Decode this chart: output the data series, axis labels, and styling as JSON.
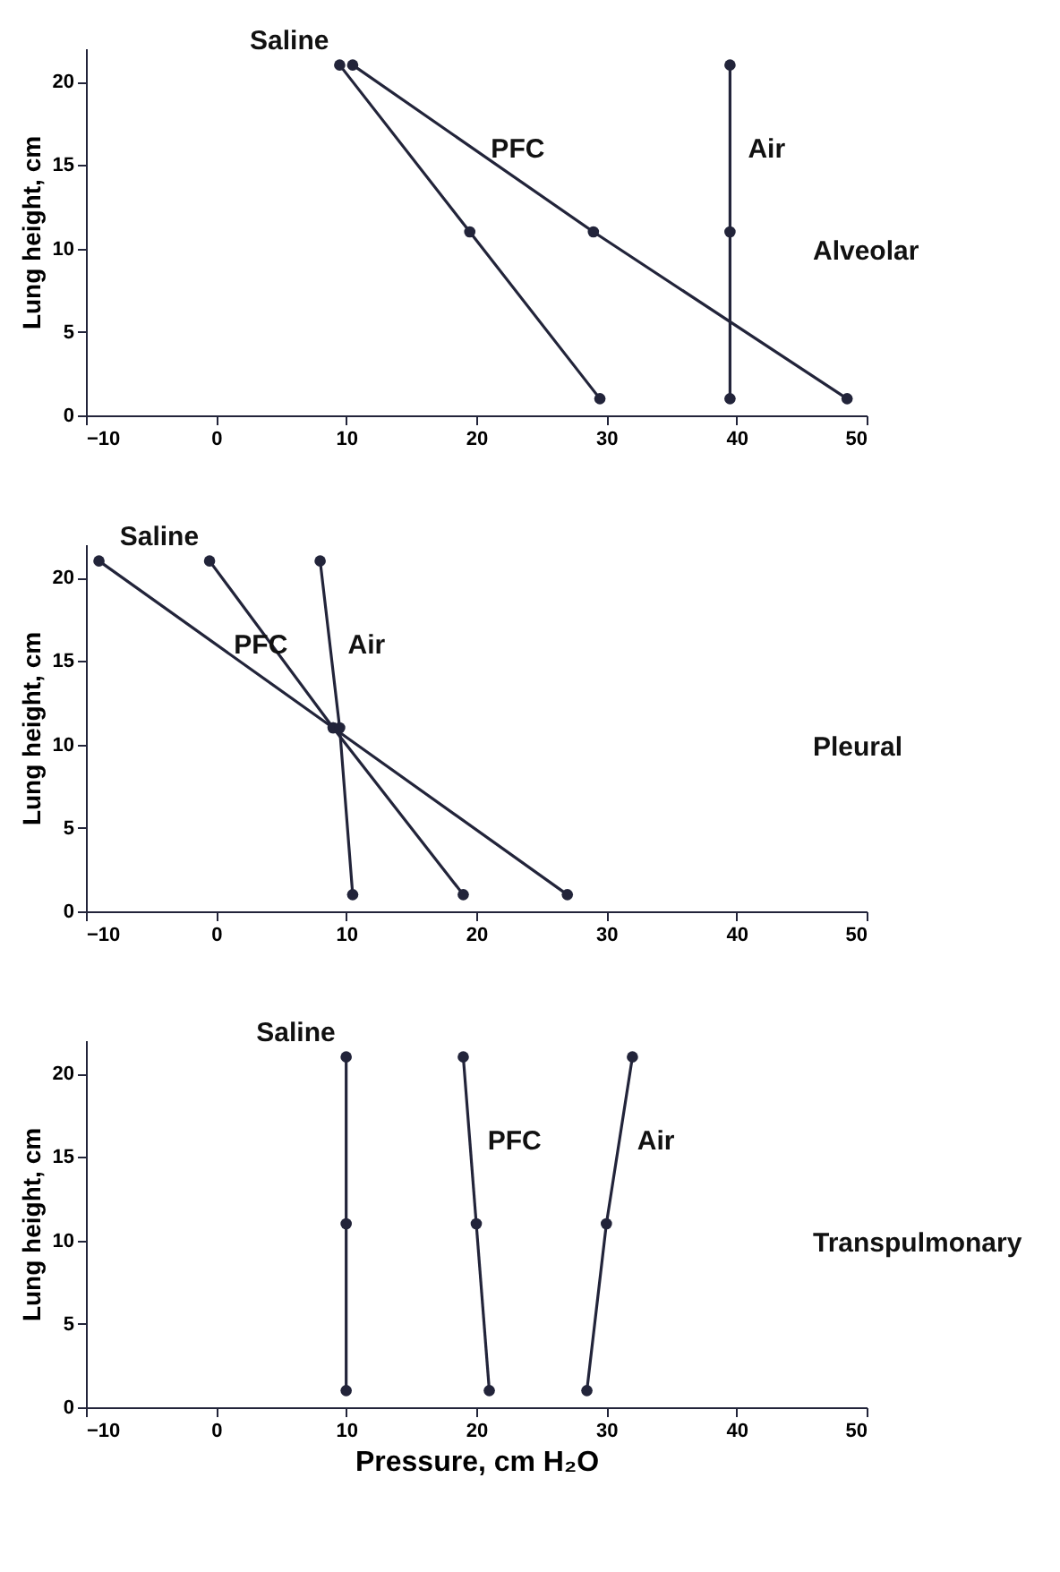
{
  "chart_data": [
    {
      "type": "line",
      "ylabel": "Lung height, cm",
      "xlim": [
        -10,
        50
      ],
      "xticks": [
        -10,
        0,
        10,
        20,
        30,
        40,
        50
      ],
      "ylim": [
        0,
        22
      ],
      "yticks": [
        0,
        5,
        10,
        15,
        20
      ],
      "grid": false,
      "marker": "circle",
      "line_style": "solid",
      "series": [
        {
          "name": "Saline",
          "color": "#22243a",
          "x": [
            9.5,
            19.5,
            29.5
          ],
          "values": [
            21,
            11,
            1
          ]
        },
        {
          "name": "PFC",
          "color": "#22243a",
          "x": [
            10.5,
            29,
            48.5
          ],
          "values": [
            21,
            11,
            1
          ]
        },
        {
          "name": "Air",
          "color": "#22243a",
          "x": [
            39.5,
            39.5,
            39.5
          ],
          "values": [
            21,
            11,
            1
          ]
        }
      ],
      "annotations": [
        "Alveolar"
      ]
    },
    {
      "type": "line",
      "ylabel": "Lung height, cm",
      "xlim": [
        -10,
        50
      ],
      "xticks": [
        -10,
        0,
        10,
        20,
        30,
        40,
        50
      ],
      "ylim": [
        0,
        22
      ],
      "yticks": [
        0,
        5,
        10,
        15,
        20
      ],
      "grid": false,
      "marker": "circle",
      "line_style": "solid",
      "series": [
        {
          "name": "Saline",
          "color": "#22243a",
          "x": [
            -0.5,
            9,
            19
          ],
          "values": [
            21,
            11,
            1
          ]
        },
        {
          "name": "PFC",
          "color": "#22243a",
          "x": [
            -9,
            9,
            27
          ],
          "values": [
            21,
            11,
            1
          ]
        },
        {
          "name": "Air",
          "color": "#22243a",
          "x": [
            8,
            9.5,
            10.5
          ],
          "values": [
            21,
            11,
            1
          ]
        }
      ],
      "annotations": [
        "Pleural"
      ]
    },
    {
      "type": "line",
      "xlabel": "Pressure, cm H₂O",
      "ylabel": "Lung height, cm",
      "xlim": [
        -10,
        50
      ],
      "xticks": [
        -10,
        0,
        10,
        20,
        30,
        40,
        50
      ],
      "ylim": [
        0,
        22
      ],
      "yticks": [
        0,
        5,
        10,
        15,
        20
      ],
      "grid": false,
      "marker": "circle",
      "line_style": "solid",
      "series": [
        {
          "name": "Saline",
          "color": "#22243a",
          "x": [
            10,
            10,
            10
          ],
          "values": [
            21,
            11,
            1
          ]
        },
        {
          "name": "PFC",
          "color": "#22243a",
          "x": [
            19,
            20,
            21
          ],
          "values": [
            21,
            11,
            1
          ]
        },
        {
          "name": "Air",
          "color": "#22243a",
          "x": [
            32,
            30,
            28.5
          ],
          "values": [
            21,
            11,
            1
          ]
        }
      ],
      "annotations": [
        "Transpulmonary"
      ]
    }
  ]
}
